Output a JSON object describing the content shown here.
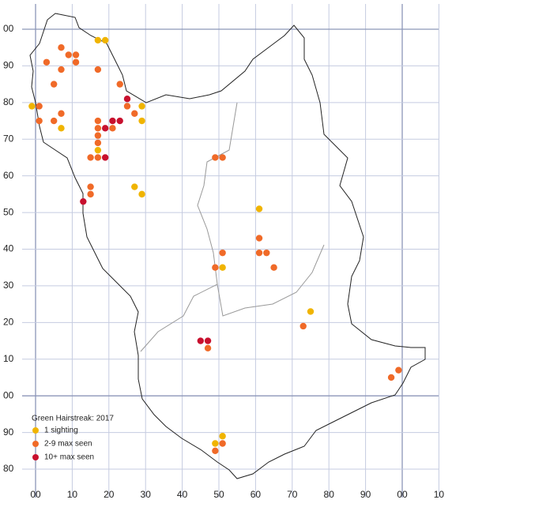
{
  "chart_data": {
    "type": "scatter",
    "title": "Green Hairstreak:  2017",
    "xlim": [
      0,
      110
    ],
    "ylim": [
      -20,
      100
    ],
    "grid": true,
    "xticks": [
      {
        "value": 0,
        "label": "00"
      },
      10,
      20,
      30,
      40,
      50,
      60,
      70,
      80,
      90,
      {
        "value": 100,
        "label": "00"
      },
      {
        "value": 110,
        "label": "10"
      }
    ],
    "yticks": [
      {
        "value": 100,
        "label": "00"
      },
      90,
      80,
      70,
      60,
      50,
      40,
      30,
      20,
      10,
      {
        "value": 0,
        "label": "00"
      },
      {
        "value": -10,
        "label": "90"
      },
      {
        "value": -20,
        "label": "80"
      }
    ],
    "series": [
      {
        "name": "1 sighting",
        "color": "#f0b400",
        "x": [
          -1,
          7,
          17,
          19,
          29,
          29,
          17,
          27,
          29,
          61,
          51,
          75,
          51,
          49
        ],
        "y": [
          79,
          73,
          97,
          97,
          79,
          75,
          67,
          57,
          55,
          51,
          35,
          23,
          -11,
          -13
        ]
      },
      {
        "name": "2-9 max seen",
        "color": "#f06a28",
        "x": [
          7,
          3,
          9,
          11,
          11,
          7,
          17,
          5,
          23,
          1,
          7,
          1,
          5,
          17,
          25,
          27,
          17,
          21,
          17,
          17,
          15,
          17,
          15,
          15,
          49,
          51,
          61,
          61,
          63,
          51,
          65,
          49,
          73,
          47,
          99,
          97,
          51,
          49
        ],
        "y": [
          95,
          91,
          93,
          93,
          91,
          89,
          89,
          85,
          85,
          79,
          77,
          75,
          75,
          75,
          79,
          77,
          73,
          73,
          71,
          69,
          65,
          65,
          57,
          55,
          65,
          65,
          43,
          39,
          39,
          39,
          35,
          35,
          19,
          13,
          7,
          5,
          -13,
          -15
        ]
      },
      {
        "name": "10+ max seen",
        "color": "#c8102e",
        "x": [
          25,
          21,
          23,
          19,
          19,
          13,
          45,
          47
        ],
        "y": [
          81,
          75,
          75,
          73,
          65,
          53,
          15,
          15
        ]
      }
    ]
  }
}
